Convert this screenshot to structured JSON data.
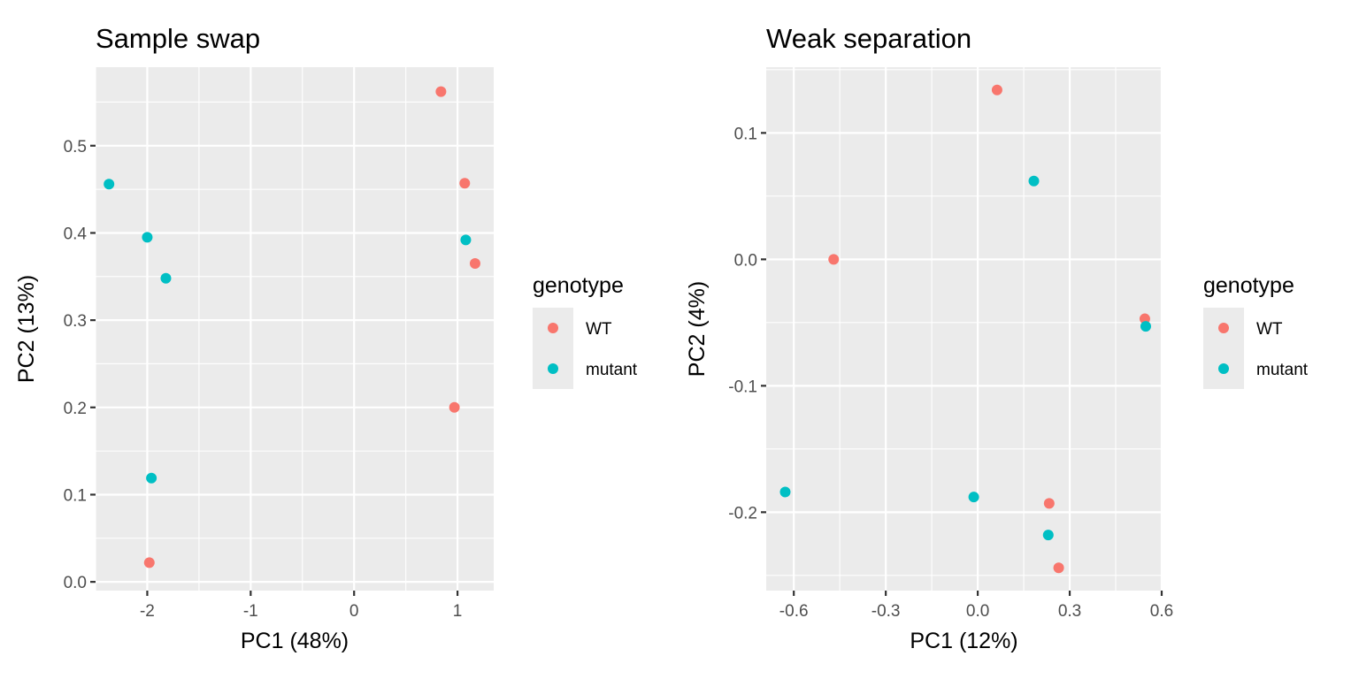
{
  "colors": {
    "WT": "#F8766D",
    "mutant": "#00BFC4",
    "panel_bg": "#EBEBEB",
    "grid": "#FFFFFF",
    "tick_text": "#4D4D4D",
    "text": "#000000"
  },
  "chart_data": [
    {
      "type": "scatter",
      "title": "Sample swap",
      "xlabel": "PC1 (48%)",
      "ylabel": "PC2 (13%)",
      "xlim": [
        -2.5,
        1.35
      ],
      "ylim": [
        -0.01,
        0.59
      ],
      "xticks": [
        -2,
        -1,
        0,
        1
      ],
      "xtick_labels": [
        "-2",
        "-1",
        "0",
        "1"
      ],
      "yticks": [
        0.0,
        0.1,
        0.2,
        0.3,
        0.4,
        0.5
      ],
      "ytick_labels": [
        "0.0",
        "0.1",
        "0.2",
        "0.3",
        "0.4",
        "0.5"
      ],
      "x_minor": [
        -2.5,
        -1.5,
        -0.5,
        0.5
      ],
      "y_minor": [
        0.05,
        0.15,
        0.25,
        0.35,
        0.45,
        0.55
      ],
      "grid": true,
      "legend": {
        "title": "genotype",
        "position": "right",
        "entries": [
          {
            "label": "WT",
            "color": "#F8766D"
          },
          {
            "label": "mutant",
            "color": "#00BFC4"
          }
        ]
      },
      "series": [
        {
          "name": "WT",
          "points": [
            {
              "x": 0.84,
              "y": 0.562
            },
            {
              "x": 1.07,
              "y": 0.457
            },
            {
              "x": 1.17,
              "y": 0.365
            },
            {
              "x": 0.97,
              "y": 0.2
            },
            {
              "x": -1.98,
              "y": 0.022
            }
          ]
        },
        {
          "name": "mutant",
          "points": [
            {
              "x": -2.37,
              "y": 0.456
            },
            {
              "x": -2.0,
              "y": 0.395
            },
            {
              "x": -1.82,
              "y": 0.348
            },
            {
              "x": 1.08,
              "y": 0.392
            },
            {
              "x": -1.96,
              "y": 0.119
            }
          ]
        }
      ]
    },
    {
      "type": "scatter",
      "title": "Weak separation",
      "xlabel": "PC1 (12%)",
      "ylabel": "PC2 (4%)",
      "xlim": [
        -0.69,
        0.6
      ],
      "ylim": [
        -0.262,
        0.152
      ],
      "xticks": [
        -0.6,
        -0.3,
        0.0,
        0.3,
        0.6
      ],
      "xtick_labels": [
        "-0.6",
        "-0.3",
        "0.0",
        "0.3",
        "0.6"
      ],
      "yticks": [
        0.1,
        0.0,
        -0.1,
        -0.2
      ],
      "ytick_labels": [
        "0.1",
        "0.0",
        "-0.1",
        "-0.2"
      ],
      "x_minor": [
        -0.45,
        -0.15,
        0.15,
        0.45
      ],
      "y_minor": [
        0.15,
        0.05,
        -0.05,
        -0.15,
        -0.25
      ],
      "grid": true,
      "legend": {
        "title": "genotype",
        "position": "right",
        "entries": [
          {
            "label": "WT",
            "color": "#F8766D"
          },
          {
            "label": "mutant",
            "color": "#00BFC4"
          }
        ]
      },
      "series": [
        {
          "name": "WT",
          "points": [
            {
              "x": 0.063,
              "y": 0.134
            },
            {
              "x": -0.47,
              "y": 0.0
            },
            {
              "x": 0.545,
              "y": -0.047
            },
            {
              "x": 0.233,
              "y": -0.193
            },
            {
              "x": 0.264,
              "y": -0.244
            }
          ]
        },
        {
          "name": "mutant",
          "points": [
            {
              "x": 0.183,
              "y": 0.062
            },
            {
              "x": 0.548,
              "y": -0.053
            },
            {
              "x": -0.628,
              "y": -0.184
            },
            {
              "x": -0.013,
              "y": -0.188
            },
            {
              "x": 0.23,
              "y": -0.218
            }
          ]
        }
      ]
    }
  ]
}
